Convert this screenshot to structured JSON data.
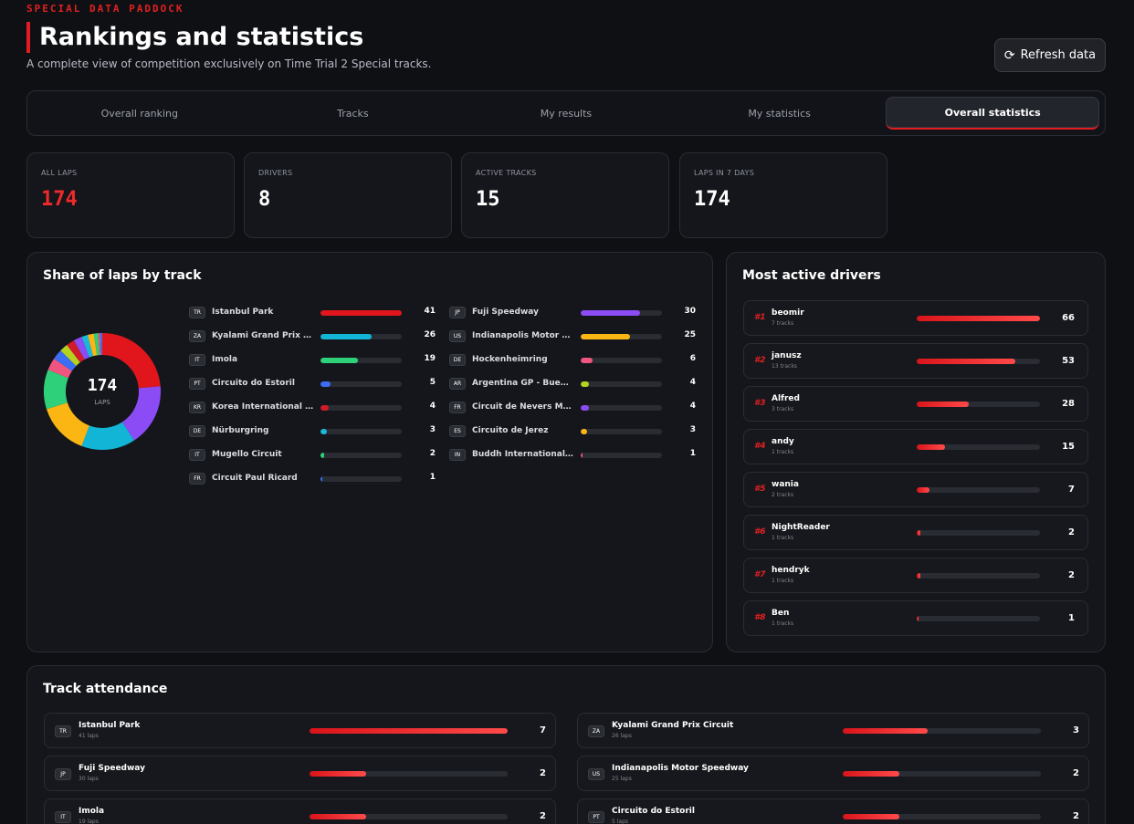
{
  "header": {
    "eyebrow": "SPECIAL DATA PADDOCK",
    "title": "Rankings and statistics",
    "subtitle": "A complete view of competition exclusively on Time Trial 2 Special tracks.",
    "refresh_label": "Refresh data",
    "refresh_icon": "refresh-icon"
  },
  "tabs": [
    {
      "label": "Overall ranking",
      "active": false
    },
    {
      "label": "Tracks",
      "active": false
    },
    {
      "label": "My results",
      "active": false
    },
    {
      "label": "My statistics",
      "active": false
    },
    {
      "label": "Overall statistics",
      "active": true
    }
  ],
  "kpis": [
    {
      "label": "ALL LAPS",
      "value": "174",
      "accent": true
    },
    {
      "label": "DRIVERS",
      "value": "8",
      "accent": false
    },
    {
      "label": "ACTIVE TRACKS",
      "value": "15",
      "accent": false
    },
    {
      "label": "LAPS IN 7 DAYS",
      "value": "174",
      "accent": false
    }
  ],
  "share": {
    "title": "Share of laps by track",
    "total": "174",
    "total_label": "LAPS",
    "max": 41,
    "tracks": [
      {
        "name": "Istanbul Park",
        "flag": "TR",
        "laps": 41,
        "color": "#e1161c"
      },
      {
        "name": "Kyalami Grand Prix Circuit",
        "flag": "ZA",
        "laps": 26,
        "color": "#12b5d6"
      },
      {
        "name": "Imola",
        "flag": "IT",
        "laps": 19,
        "color": "#2fd07a"
      },
      {
        "name": "Circuito do Estoril",
        "flag": "PT",
        "laps": 5,
        "color": "#3b6ef5"
      },
      {
        "name": "Korea International Circuit",
        "flag": "KR",
        "laps": 4,
        "color": "#d11a2a"
      },
      {
        "name": "Nürburgring",
        "flag": "DE",
        "laps": 3,
        "color": "#18b9d8"
      },
      {
        "name": "Mugello Circuit",
        "flag": "IT",
        "laps": 2,
        "color": "#2fd07a"
      },
      {
        "name": "Circuit Paul Ricard",
        "flag": "FR",
        "laps": 1,
        "color": "#3b6ef5"
      },
      {
        "name": "Fuji Speedway",
        "flag": "JP",
        "laps": 30,
        "color": "#8b4cf6"
      },
      {
        "name": "Indianapolis Motor Speedway",
        "flag": "US",
        "laps": 25,
        "color": "#fbb614"
      },
      {
        "name": "Hockenheimring",
        "flag": "DE",
        "laps": 6,
        "color": "#f0557f"
      },
      {
        "name": "Argentina GP - Buenos Aires",
        "flag": "AR",
        "laps": 4,
        "color": "#b5d21f"
      },
      {
        "name": "Circuit de Nevers Magny-Cours",
        "flag": "FR",
        "laps": 4,
        "color": "#8b4cf6"
      },
      {
        "name": "Circuito de Jerez",
        "flag": "ES",
        "laps": 3,
        "color": "#fbb614"
      },
      {
        "name": "Buddh International Circuit",
        "flag": "IN",
        "laps": 1,
        "color": "#f0557f"
      }
    ]
  },
  "drivers": {
    "title": "Most active drivers",
    "max": 66,
    "items": [
      {
        "rank": "#1",
        "name": "beomir",
        "tracks": "7 tracks",
        "laps": 66
      },
      {
        "rank": "#2",
        "name": "janusz",
        "tracks": "13 tracks",
        "laps": 53
      },
      {
        "rank": "#3",
        "name": "Alfred",
        "tracks": "3 tracks",
        "laps": 28
      },
      {
        "rank": "#4",
        "name": "andy",
        "tracks": "1 tracks",
        "laps": 15
      },
      {
        "rank": "#5",
        "name": "wania",
        "tracks": "2 tracks",
        "laps": 7
      },
      {
        "rank": "#6",
        "name": "NightReader",
        "tracks": "1 tracks",
        "laps": 2
      },
      {
        "rank": "#7",
        "name": "hendryk",
        "tracks": "1 tracks",
        "laps": 2
      },
      {
        "rank": "#8",
        "name": "Ben",
        "tracks": "1 tracks",
        "laps": 1
      }
    ]
  },
  "attendance": {
    "title": "Track attendance",
    "max": 7,
    "items": [
      {
        "name": "Istanbul Park",
        "flag": "TR",
        "laps": "41 laps",
        "value": 7
      },
      {
        "name": "Kyalami Grand Prix Circuit",
        "flag": "ZA",
        "laps": "26 laps",
        "value": 3
      },
      {
        "name": "Fuji Speedway",
        "flag": "JP",
        "laps": "30 laps",
        "value": 2
      },
      {
        "name": "Indianapolis Motor Speedway",
        "flag": "US",
        "laps": "25 laps",
        "value": 2
      },
      {
        "name": "Imola",
        "flag": "IT",
        "laps": "19 laps",
        "value": 2
      },
      {
        "name": "Circuito do Estoril",
        "flag": "PT",
        "laps": "5 laps",
        "value": 2
      }
    ]
  }
}
